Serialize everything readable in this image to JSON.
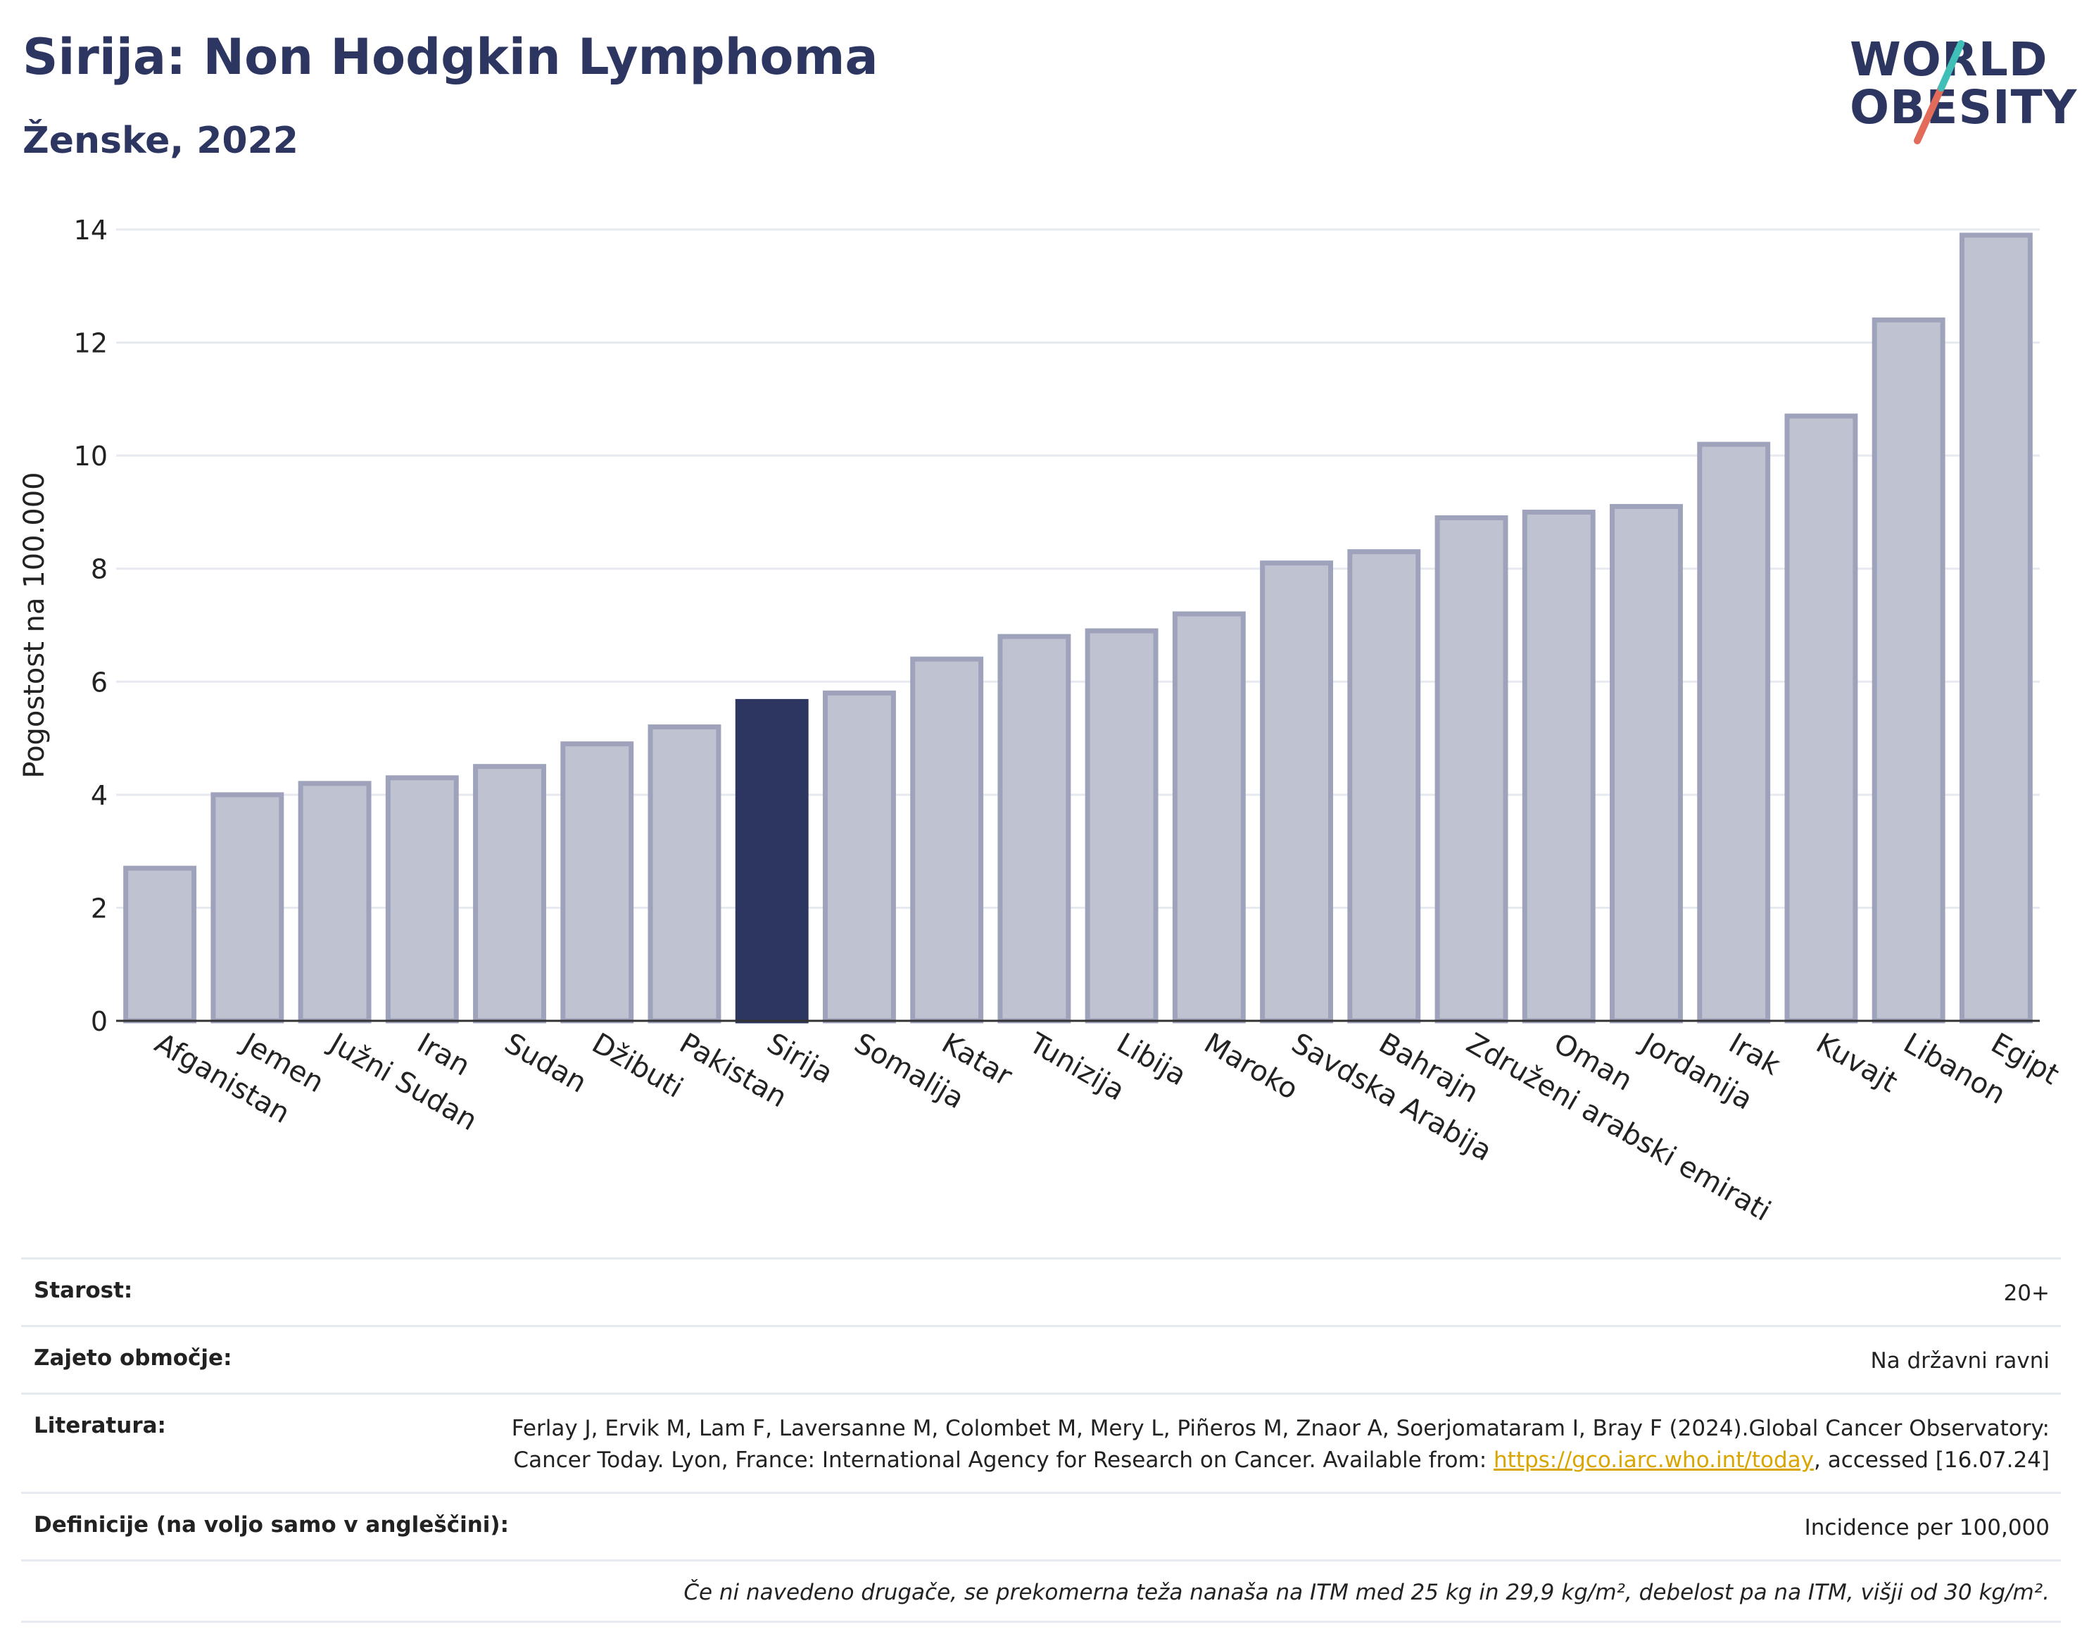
{
  "title": "Sirija: Non Hodgkin Lymphoma",
  "subtitle": "Ženske, 2022",
  "logo": {
    "line1": "WORLD",
    "line2": "OBESITY"
  },
  "colors": {
    "bar": "#bfc3d1",
    "bar_stroke": "#9ea3bb",
    "highlight": "#2d3561",
    "title": "#2d3561",
    "grid": "#e6e9ef"
  },
  "chart_data": {
    "type": "bar",
    "ylabel": "Pogostost na 100.000",
    "xlabel": "",
    "ylim": [
      0,
      14
    ],
    "yticks": [
      0,
      2,
      4,
      6,
      8,
      10,
      12,
      14
    ],
    "grid": true,
    "highlight": "Sirija",
    "categories": [
      "Afganistan",
      "Jemen",
      "Južni Sudan",
      "Iran",
      "Sudan",
      "Džibuti",
      "Pakistan",
      "Sirija",
      "Somalija",
      "Katar",
      "Tunizija",
      "Libija",
      "Maroko",
      "Savdska Arabija",
      "Bahrajn",
      "Združeni arabski emirati",
      "Oman",
      "Jordanija",
      "Irak",
      "Kuvajt",
      "Libanon",
      "Egipt"
    ],
    "values": [
      2.7,
      4.0,
      4.2,
      4.3,
      4.5,
      4.9,
      5.2,
      5.65,
      5.8,
      6.4,
      6.8,
      6.9,
      7.2,
      8.1,
      8.3,
      8.9,
      9.0,
      9.1,
      10.2,
      10.7,
      12.4,
      13.9
    ]
  },
  "info": {
    "age_label": "Starost:",
    "age_value": "20+",
    "coverage_label": "Zajeto območje:",
    "coverage_value": "Na državni ravni",
    "literature_label": "Literatura:",
    "literature_text1": "Ferlay J, Ervik M, Lam F, Laversanne M, Colombet M, Mery L, Piñeros M, Znaor A, Soerjomataram I, Bray F (2024).Global Cancer Observatory: Cancer Today. Lyon, France: International Agency for Research on Cancer. Available from: ",
    "literature_link": "https://gco.iarc.who.int/today",
    "literature_text2": ", accessed [16.07.24]",
    "definitions_label": "Definicije (na voljo samo v angleščini):",
    "definitions_value": "Incidence per 100,000",
    "note": "Če ni navedeno drugače, se prekomerna teža nanaša na ITM med 25 kg in 29,9 kg/m², debelost pa na ITM, višji od 30 kg/m²."
  }
}
